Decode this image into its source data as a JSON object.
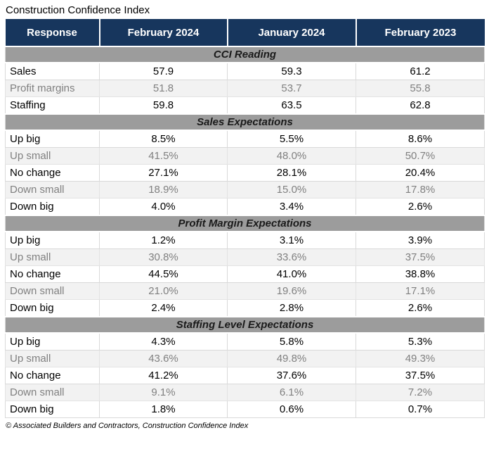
{
  "colors": {
    "header_bg": "#17365D",
    "header_text": "#FFFFFF",
    "section_bg": "#9C9C9C",
    "section_text": "#1A1A1A",
    "row_alt_bg": "#F2F2F2",
    "row_alt_text": "#808080",
    "row_text": "#000000",
    "border": "#D9D9D9"
  },
  "chart_data": {
    "type": "table",
    "title": "Construction Confidence Index",
    "footer": "© Associated Builders and Contractors, Construction Confidence Index",
    "columns": [
      "Response",
      "February 2024",
      "January 2024",
      "February 2023"
    ],
    "sections": [
      {
        "header": "CCI Reading",
        "rows": [
          [
            "Sales",
            "57.9",
            "59.3",
            "61.2"
          ],
          [
            "Profit margins",
            "51.8",
            "53.7",
            "55.8"
          ],
          [
            "Staffing",
            "59.8",
            "63.5",
            "62.8"
          ]
        ]
      },
      {
        "header": "Sales Expectations",
        "rows": [
          [
            "Up big",
            "8.5%",
            "5.5%",
            "8.6%"
          ],
          [
            "Up small",
            "41.5%",
            "48.0%",
            "50.7%"
          ],
          [
            "No change",
            "27.1%",
            "28.1%",
            "20.4%"
          ],
          [
            "Down small",
            "18.9%",
            "15.0%",
            "17.8%"
          ],
          [
            "Down big",
            "4.0%",
            "3.4%",
            "2.6%"
          ]
        ]
      },
      {
        "header": "Profit Margin Expectations",
        "rows": [
          [
            "Up big",
            "1.2%",
            "3.1%",
            "3.9%"
          ],
          [
            "Up small",
            "30.8%",
            "33.6%",
            "37.5%"
          ],
          [
            "No change",
            "44.5%",
            "41.0%",
            "38.8%"
          ],
          [
            "Down small",
            "21.0%",
            "19.6%",
            "17.1%"
          ],
          [
            "Down big",
            "2.4%",
            "2.8%",
            "2.6%"
          ]
        ]
      },
      {
        "header": "Staffing Level Expectations",
        "rows": [
          [
            "Up big",
            "4.3%",
            "5.8%",
            "5.3%"
          ],
          [
            "Up small",
            "43.6%",
            "49.8%",
            "49.3%"
          ],
          [
            "No change",
            "41.2%",
            "37.6%",
            "37.5%"
          ],
          [
            "Down small",
            "9.1%",
            "6.1%",
            "7.2%"
          ],
          [
            "Down big",
            "1.8%",
            "0.6%",
            "0.7%"
          ]
        ]
      }
    ]
  }
}
